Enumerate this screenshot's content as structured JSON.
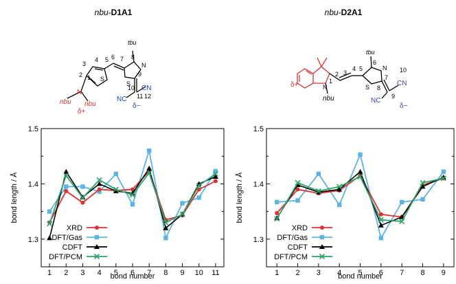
{
  "panels": [
    {
      "title_prefix": "nbu-",
      "title_bold": "D1A1",
      "atom_labels": {
        "tbu": "tbu",
        "n_ring": "N",
        "s_ring": "S",
        "s_thio": "S",
        "n_amine": "N",
        "nbu_left": "nbu",
        "nbu_right": "nbu",
        "cn_right": "CN",
        "nc_left": "NC",
        "delta_plus": "δ+",
        "delta_minus": "δ−",
        "num_1": "1",
        "num_2": "2",
        "num_3": "3",
        "num_4": "4",
        "num_5": "5",
        "num_6": "6",
        "num_7": "7",
        "num_8": "8",
        "num_9": "9",
        "num_10": "10",
        "num_11": "11",
        "num_12": "12"
      }
    },
    {
      "title_prefix": "nbu-",
      "title_bold": "D2A1",
      "atom_labels": {
        "tbu": "tbu",
        "n_ring": "N",
        "s_ring": "S",
        "n_indole": "N",
        "nbu": "nbu",
        "cn_right": "CN",
        "nc_left": "NC",
        "delta_plus": "δ+",
        "delta_minus": "δ−",
        "num_1": "1",
        "num_2": "2",
        "num_3": "3",
        "num_4": "4",
        "num_5": "5",
        "num_6": "6",
        "num_7": "7",
        "num_8": "8",
        "num_9": "9",
        "num_10": "10"
      }
    }
  ],
  "colors": {
    "XRD": "#e03030",
    "DFT/Gas": "#5ab4e6",
    "CDFT": "#000000",
    "DFT/PCM": "#2aa366",
    "donor": "#e03030",
    "acceptor": "#2a3fc0"
  },
  "chart_data": [
    {
      "type": "line",
      "xlabel": "bond number",
      "ylabel": "bond length / Å",
      "xlim": [
        0.5,
        11.5
      ],
      "ylim": [
        1.25,
        1.5
      ],
      "x": [
        1,
        2,
        3,
        4,
        5,
        6,
        7,
        8,
        9,
        10,
        11
      ],
      "xticks": [
        "1",
        "2",
        "3",
        "4",
        "5",
        "6",
        "7",
        "8",
        "9",
        "10",
        "11"
      ],
      "yticks": [
        "1.3",
        "1.4",
        "1.5"
      ],
      "legend_position": "bottom-left",
      "series": [
        {
          "name": "XRD",
          "marker": "circle",
          "values": [
            1.33,
            1.387,
            1.366,
            1.39,
            1.388,
            1.39,
            1.423,
            1.335,
            1.343,
            1.39,
            1.405
          ]
        },
        {
          "name": "DFT/Gas",
          "marker": "square",
          "values": [
            1.35,
            1.395,
            1.395,
            1.386,
            1.418,
            1.363,
            1.46,
            1.302,
            1.365,
            1.375,
            1.423
          ]
        },
        {
          "name": "CDFT",
          "marker": "triangle",
          "values": [
            1.302,
            1.422,
            1.376,
            1.4,
            1.387,
            1.383,
            1.428,
            1.32,
            1.345,
            1.4,
            1.413
          ]
        },
        {
          "name": "DFT/PCM",
          "marker": "x",
          "values": [
            1.328,
            1.415,
            1.375,
            1.407,
            1.39,
            1.38,
            1.42,
            1.33,
            1.345,
            1.397,
            1.418
          ]
        }
      ]
    },
    {
      "type": "line",
      "xlabel": "bond number",
      "ylabel": "bond length / Å",
      "xlim": [
        0.5,
        9.5
      ],
      "ylim": [
        1.25,
        1.5
      ],
      "x": [
        1,
        2,
        3,
        4,
        5,
        6,
        7,
        8,
        9
      ],
      "xticks": [
        "1",
        "2",
        "3",
        "4",
        "5",
        "6",
        "7",
        "8",
        "9"
      ],
      "yticks": [
        "1.3",
        "1.4",
        "1.5"
      ],
      "legend_position": "bottom-left",
      "series": [
        {
          "name": "XRD",
          "marker": "circle",
          "values": [
            1.347,
            1.39,
            1.383,
            1.388,
            1.415,
            1.345,
            1.34,
            1.398,
            1.41
          ]
        },
        {
          "name": "DFT/Gas",
          "marker": "square",
          "values": [
            1.367,
            1.37,
            1.418,
            1.362,
            1.453,
            1.302,
            1.367,
            1.372,
            1.422
          ]
        },
        {
          "name": "CDFT",
          "marker": "triangle",
          "values": [
            1.338,
            1.398,
            1.385,
            1.39,
            1.422,
            1.325,
            1.34,
            1.395,
            1.412
          ]
        },
        {
          "name": "DFT/PCM",
          "marker": "x",
          "values": [
            1.337,
            1.402,
            1.387,
            1.395,
            1.413,
            1.335,
            1.332,
            1.402,
            1.41
          ]
        }
      ]
    }
  ]
}
